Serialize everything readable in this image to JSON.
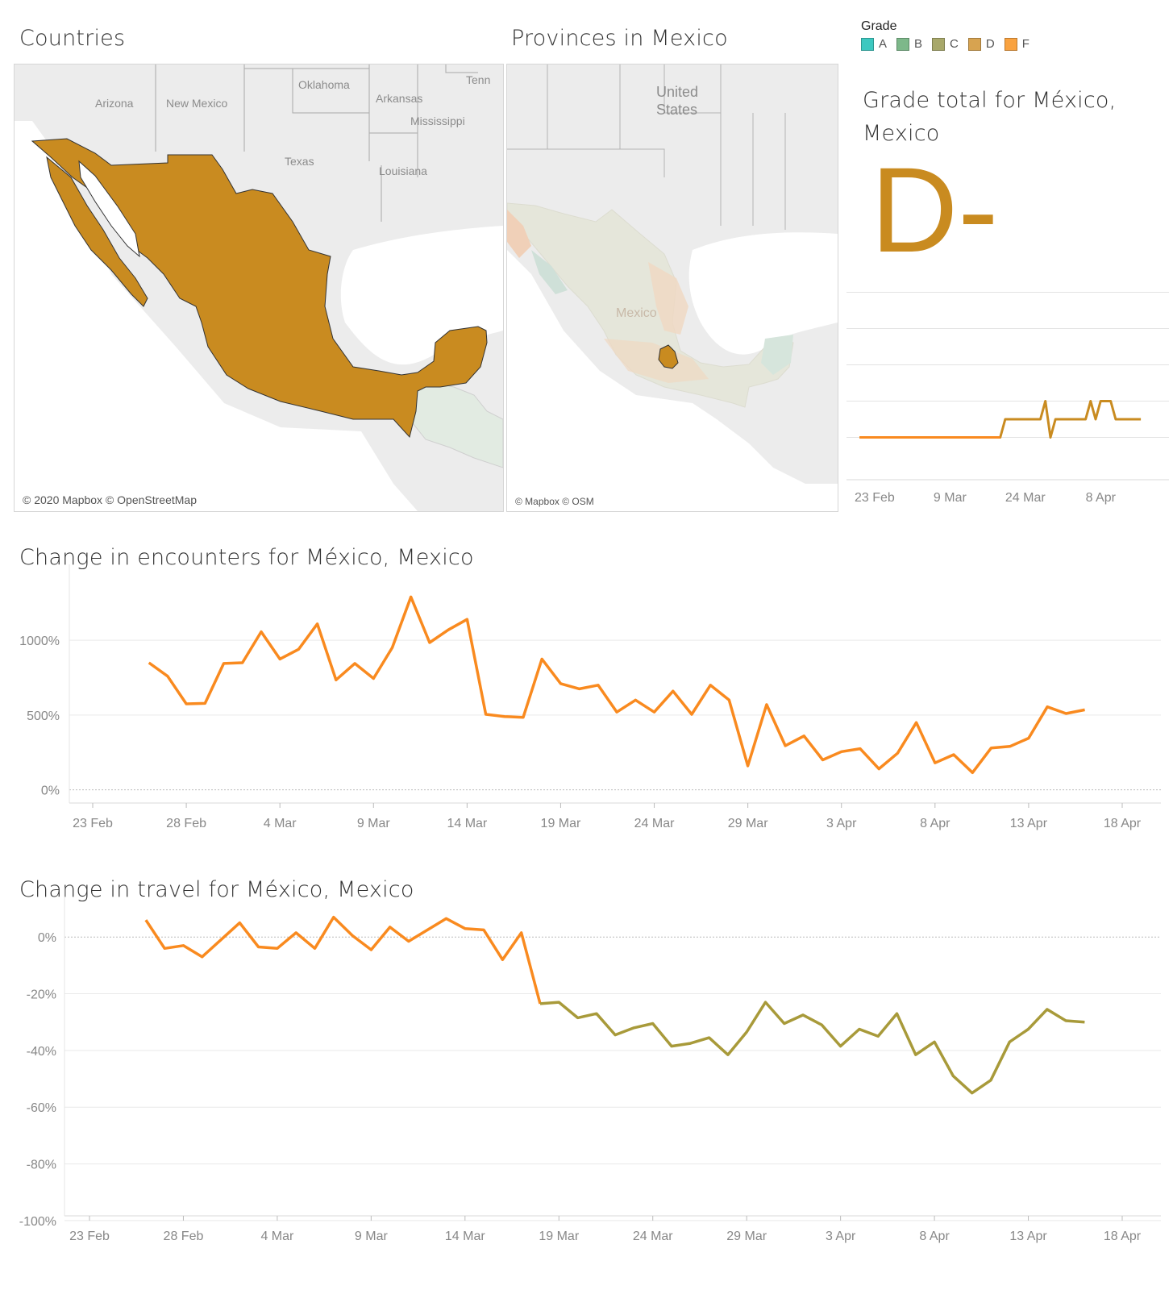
{
  "titles": {
    "countries": "Countries",
    "provinces": "Provinces in Mexico",
    "grade_total": "Grade total for México, Mexico",
    "encounters": "Change in encounters for México, Mexico",
    "travel": "Change in travel for México, Mexico"
  },
  "legend": {
    "title": "Grade",
    "items": [
      {
        "label": "A",
        "color": "#3CC8C0"
      },
      {
        "label": "B",
        "color": "#7DB88A"
      },
      {
        "label": "C",
        "color": "#A8A86A"
      },
      {
        "label": "D",
        "color": "#D7A350"
      },
      {
        "label": "F",
        "color": "#F9A23F"
      }
    ]
  },
  "grade_letter": "D-",
  "colors": {
    "mexico_fill": "#C98B20",
    "line_orange": "#F98A1F",
    "grade_line": "#C98B20",
    "travel_olive": "#A89A3A"
  },
  "maps": {
    "countries": {
      "labels": [
        "Arizona",
        "New Mexico",
        "Oklahoma",
        "Arkansas",
        "Mississippi",
        "Texas",
        "Louisiana",
        "Tenn"
      ],
      "credit": "© 2020 Mapbox © OpenStreetMap"
    },
    "provinces": {
      "labels": [
        "United",
        "States",
        "Mexico"
      ],
      "credit": "© Mapbox © OSM"
    }
  },
  "chart_data": [
    {
      "id": "grade",
      "type": "line",
      "x_axis": "date",
      "x_ticks": [
        "23 Feb",
        "9 Mar",
        "24 Mar",
        "8 Apr"
      ],
      "xlim": [
        "2020-02-19",
        "2020-04-20"
      ],
      "ylim": [
        0,
        5
      ],
      "y_gridlines": [
        0.5,
        1.5,
        2.5,
        3.5,
        4.5
      ],
      "y_tick_labels_shown": false,
      "series": [
        {
          "x": [
            "2020-02-20",
            "2020-03-19",
            "2020-03-20",
            "2020-03-27",
            "2020-03-28",
            "2020-03-29",
            "2020-03-30",
            "2020-04-05",
            "2020-04-06",
            "2020-04-07",
            "2020-04-08",
            "2020-04-10",
            "2020-04-11",
            "2020-04-16"
          ],
          "values": [
            0.5,
            0.5,
            1.0,
            1.0,
            1.5,
            0.5,
            1.0,
            1.0,
            1.5,
            1.0,
            1.5,
            1.5,
            1.0,
            1.0
          ]
        }
      ]
    },
    {
      "id": "encounters",
      "type": "line",
      "x_axis": "date",
      "x_ticks": [
        "23 Feb",
        "28 Feb",
        "4 Mar",
        "9 Mar",
        "14 Mar",
        "19 Mar",
        "24 Mar",
        "29 Mar",
        "3 Apr",
        "8 Apr",
        "13 Apr",
        "18 Apr"
      ],
      "y_ticks": [
        "1000%",
        "500%",
        "0%"
      ],
      "ylim": [
        -110,
        1400
      ],
      "zero_line": "dotted",
      "series": [
        {
          "start_date": "2020-02-26",
          "values": [
            850,
            760,
            575,
            578,
            845,
            850,
            1057,
            875,
            940,
            1110,
            735,
            845,
            745,
            950,
            1290,
            985,
            1070,
            1140,
            505,
            490,
            485,
            875,
            710,
            675,
            700,
            520,
            600,
            520,
            660,
            505,
            700,
            600,
            160,
            570,
            295,
            360,
            200,
            255,
            275,
            140,
            245,
            450,
            180,
            235,
            115,
            280,
            290,
            345,
            555,
            510,
            535
          ]
        }
      ]
    },
    {
      "id": "travel",
      "type": "line",
      "x_axis": "date",
      "x_ticks": [
        "23 Feb",
        "28 Feb",
        "4 Mar",
        "9 Mar",
        "14 Mar",
        "19 Mar",
        "24 Mar",
        "29 Mar",
        "3 Apr",
        "8 Apr",
        "13 Apr",
        "18 Apr"
      ],
      "y_ticks": [
        "0%",
        "-20%",
        "-40%",
        "-60%",
        "-80%",
        "-100%"
      ],
      "ylim": [
        -104,
        12
      ],
      "zero_line": "dotted",
      "series": [
        {
          "start_date": "2020-02-26",
          "values": [
            6,
            -4,
            -3,
            -7,
            -1,
            5,
            -3.5,
            -4,
            1.5,
            -4,
            7,
            0.5,
            -4.5,
            3.5,
            -1.5,
            2.5,
            6.5,
            3,
            2.5,
            -8,
            1.5,
            -23.5,
            -23,
            -28.5,
            -27,
            -34.5,
            -32,
            -30.5,
            -38.5,
            -37.5,
            -35.5,
            -41.5,
            -33.5,
            -23,
            -30.5,
            -27.5,
            -31,
            -38.5,
            -32.5,
            -35,
            -27,
            -41.5,
            -37,
            -49,
            -55,
            -50.5,
            -37,
            -32.5,
            -25.5,
            -29.5,
            -30
          ]
        }
      ]
    }
  ]
}
